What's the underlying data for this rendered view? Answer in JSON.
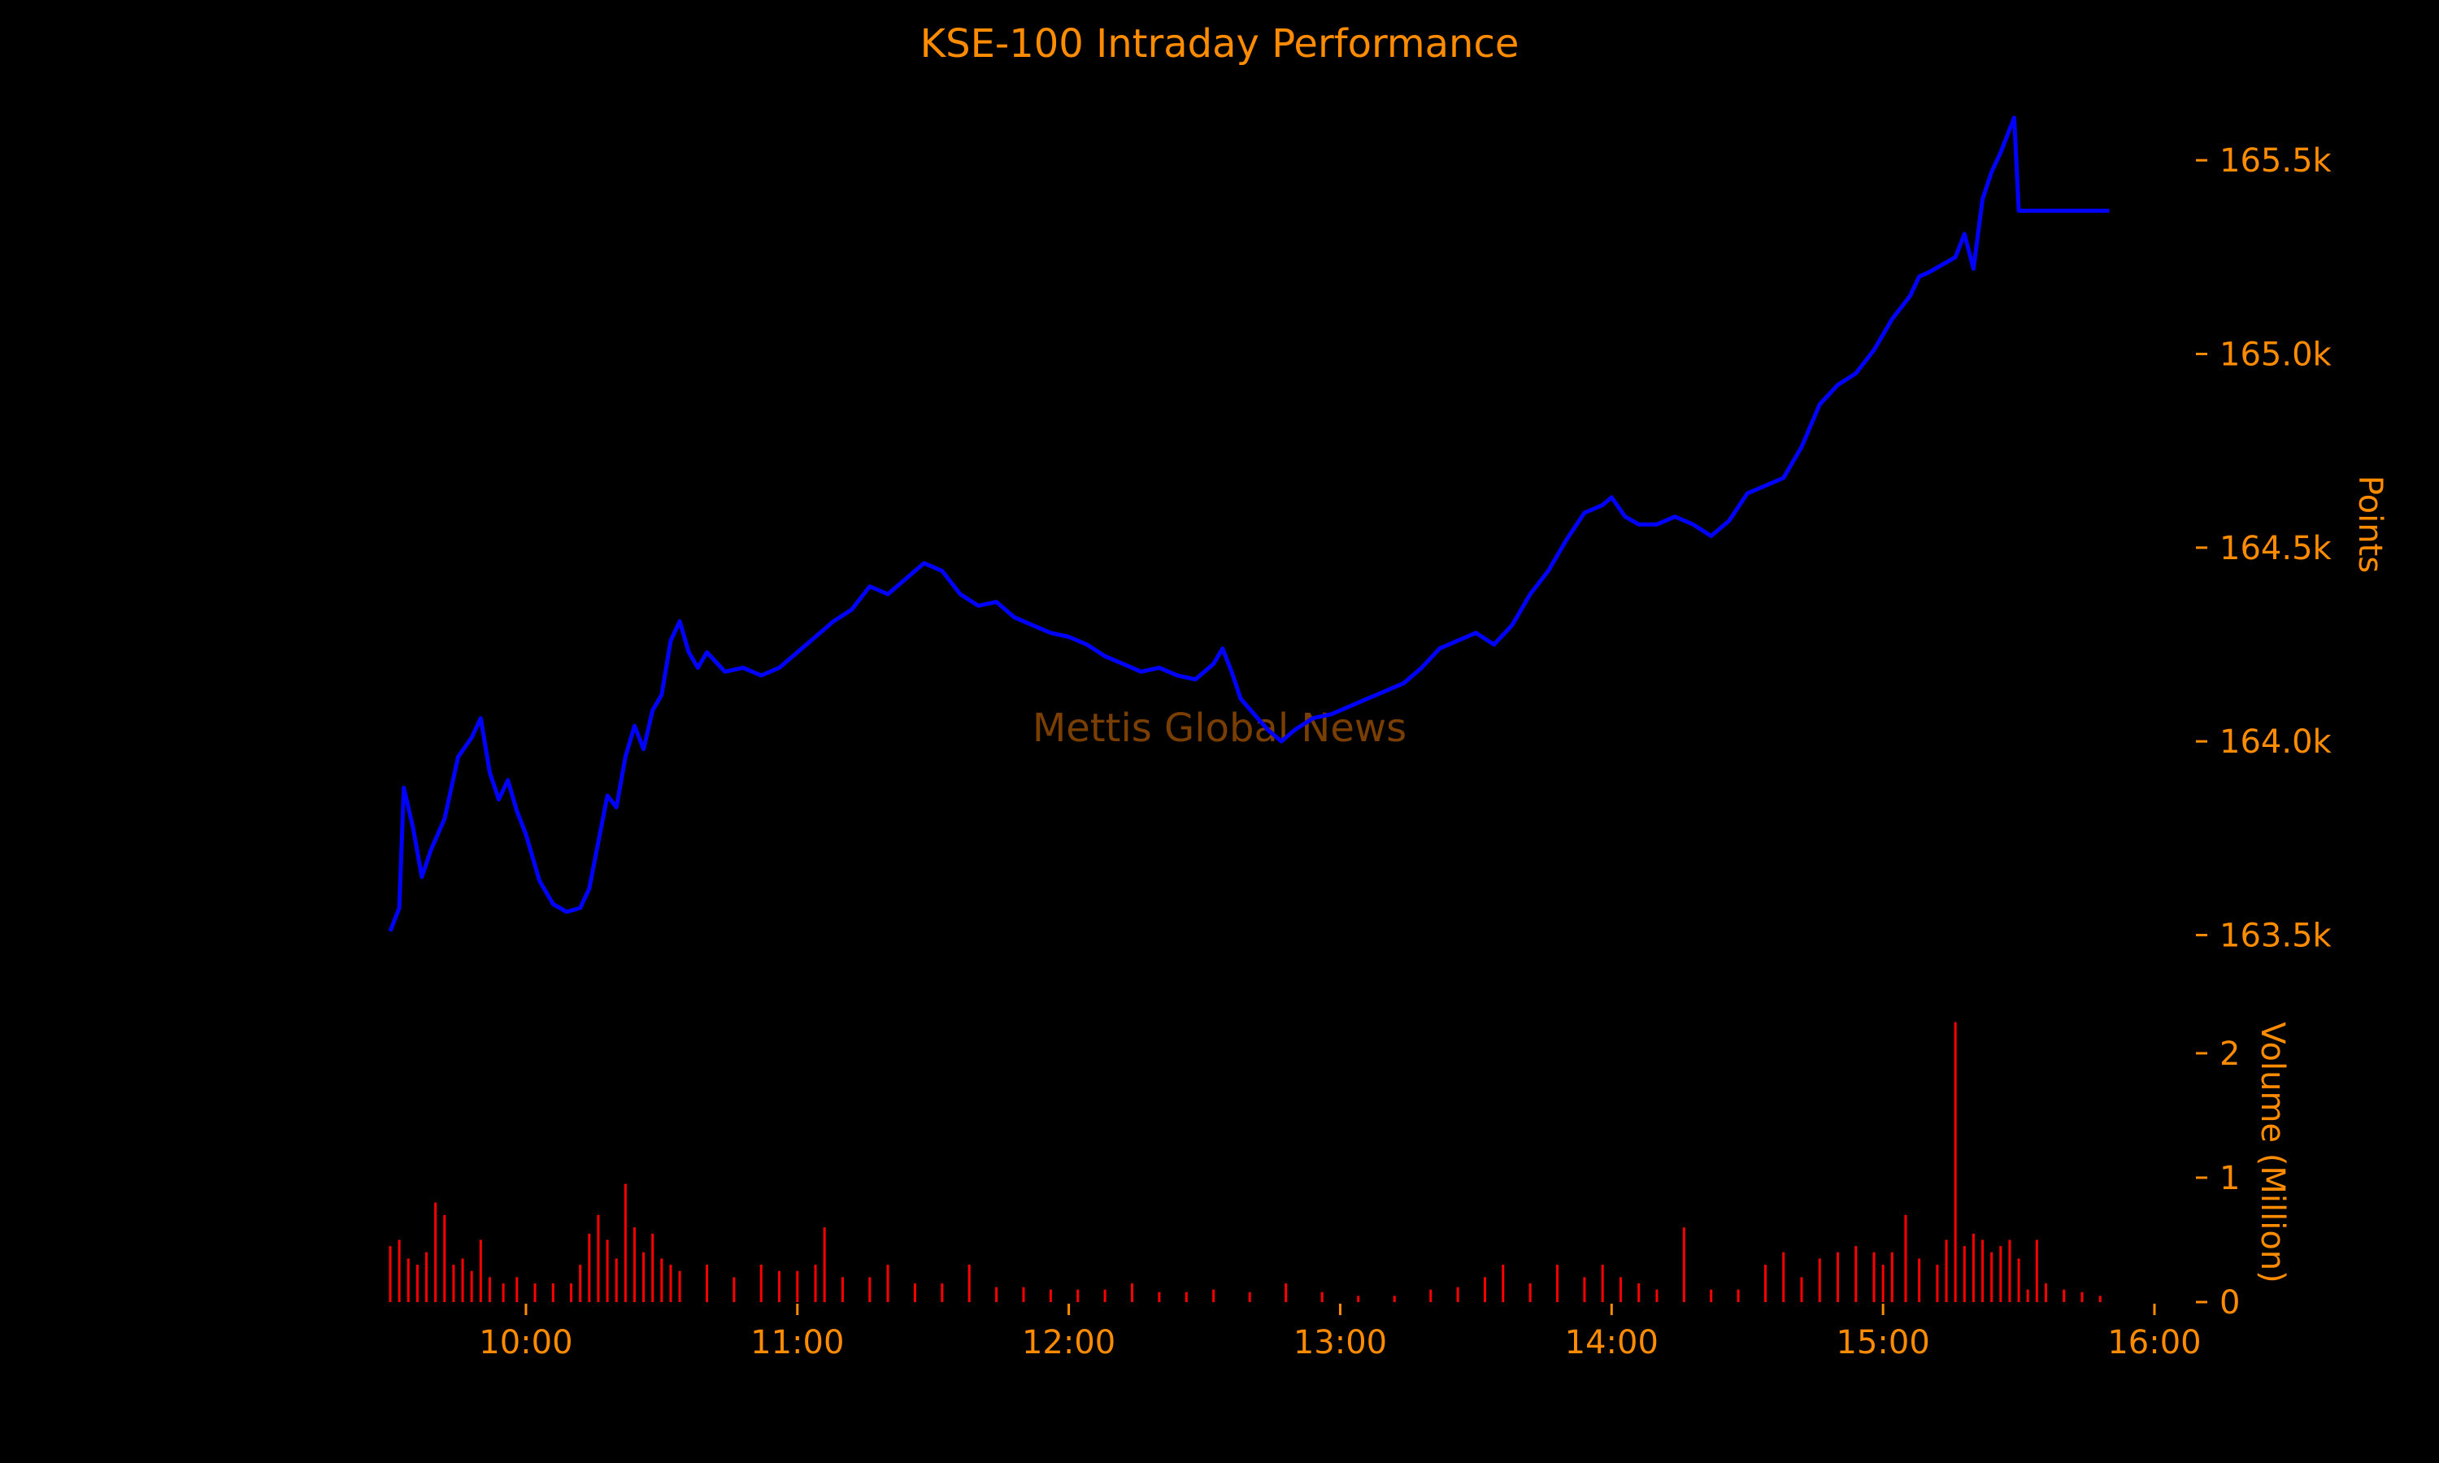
{
  "colors": {
    "background": "#000000",
    "text": "#ff8c00",
    "index_line": "#0000ff",
    "volume_bars": "#ff0000",
    "watermark": "#7a3f00"
  },
  "chart_data": {
    "type": "line",
    "title": "KSE-100 Intraday Performance",
    "watermark": "Mettis Global News",
    "ylabel_points": "Points",
    "ylabel_volume": "Volume (Million)",
    "x_ticks": [
      "10:00",
      "11:00",
      "12:00",
      "13:00",
      "14:00",
      "15:00",
      "16:00"
    ],
    "y_ticks_points": [
      "163.5k",
      "164.0k",
      "164.5k",
      "165.0k",
      "165.5k"
    ],
    "y_ticks_volume": [
      "0",
      "1",
      "2"
    ],
    "xlim": [
      "09:30",
      "16:00"
    ],
    "ylim_points": [
      163480,
      165620
    ],
    "ylim_volume": [
      0,
      2.3
    ],
    "grid": false,
    "legend": "none",
    "series": [
      {
        "type": "line",
        "axis": "points",
        "points": [
          [
            "09:30",
            163510
          ],
          [
            "09:32",
            163570
          ],
          [
            "09:33",
            163880
          ],
          [
            "09:35",
            163780
          ],
          [
            "09:37",
            163650
          ],
          [
            "09:39",
            163720
          ],
          [
            "09:42",
            163800
          ],
          [
            "09:45",
            163960
          ],
          [
            "09:48",
            164010
          ],
          [
            "09:50",
            164060
          ],
          [
            "09:52",
            163920
          ],
          [
            "09:54",
            163850
          ],
          [
            "09:56",
            163900
          ],
          [
            "09:58",
            163820
          ],
          [
            "10:00",
            163760
          ],
          [
            "10:03",
            163640
          ],
          [
            "10:06",
            163580
          ],
          [
            "10:09",
            163560
          ],
          [
            "10:12",
            163570
          ],
          [
            "10:14",
            163620
          ],
          [
            "10:16",
            163740
          ],
          [
            "10:18",
            163860
          ],
          [
            "10:20",
            163830
          ],
          [
            "10:22",
            163960
          ],
          [
            "10:24",
            164040
          ],
          [
            "10:26",
            163980
          ],
          [
            "10:28",
            164080
          ],
          [
            "10:30",
            164120
          ],
          [
            "10:32",
            164260
          ],
          [
            "10:34",
            164310
          ],
          [
            "10:36",
            164230
          ],
          [
            "10:38",
            164190
          ],
          [
            "10:40",
            164230
          ],
          [
            "10:44",
            164180
          ],
          [
            "10:48",
            164190
          ],
          [
            "10:52",
            164170
          ],
          [
            "10:56",
            164190
          ],
          [
            "11:00",
            164230
          ],
          [
            "11:04",
            164270
          ],
          [
            "11:08",
            164310
          ],
          [
            "11:12",
            164340
          ],
          [
            "11:16",
            164400
          ],
          [
            "11:20",
            164380
          ],
          [
            "11:24",
            164420
          ],
          [
            "11:28",
            164460
          ],
          [
            "11:32",
            164440
          ],
          [
            "11:36",
            164380
          ],
          [
            "11:40",
            164350
          ],
          [
            "11:44",
            164360
          ],
          [
            "11:48",
            164320
          ],
          [
            "11:52",
            164300
          ],
          [
            "11:56",
            164280
          ],
          [
            "12:00",
            164270
          ],
          [
            "12:04",
            164250
          ],
          [
            "12:08",
            164220
          ],
          [
            "12:12",
            164200
          ],
          [
            "12:16",
            164180
          ],
          [
            "12:20",
            164190
          ],
          [
            "12:24",
            164170
          ],
          [
            "12:28",
            164160
          ],
          [
            "12:32",
            164200
          ],
          [
            "12:34",
            164240
          ],
          [
            "12:36",
            164180
          ],
          [
            "12:38",
            164110
          ],
          [
            "12:41",
            164070
          ],
          [
            "12:44",
            164030
          ],
          [
            "12:47",
            164000
          ],
          [
            "12:50",
            164030
          ],
          [
            "12:54",
            164060
          ],
          [
            "12:58",
            164070
          ],
          [
            "13:02",
            164090
          ],
          [
            "13:06",
            164110
          ],
          [
            "13:10",
            164130
          ],
          [
            "13:14",
            164150
          ],
          [
            "13:18",
            164190
          ],
          [
            "13:22",
            164240
          ],
          [
            "13:26",
            164260
          ],
          [
            "13:30",
            164280
          ],
          [
            "13:34",
            164250
          ],
          [
            "13:38",
            164300
          ],
          [
            "13:42",
            164380
          ],
          [
            "13:46",
            164440
          ],
          [
            "13:50",
            164520
          ],
          [
            "13:54",
            164590
          ],
          [
            "13:58",
            164610
          ],
          [
            "14:00",
            164630
          ],
          [
            "14:03",
            164580
          ],
          [
            "14:06",
            164560
          ],
          [
            "14:10",
            164560
          ],
          [
            "14:14",
            164580
          ],
          [
            "14:18",
            164560
          ],
          [
            "14:22",
            164530
          ],
          [
            "14:26",
            164570
          ],
          [
            "14:30",
            164640
          ],
          [
            "14:34",
            164660
          ],
          [
            "14:38",
            164680
          ],
          [
            "14:42",
            164760
          ],
          [
            "14:46",
            164870
          ],
          [
            "14:50",
            164920
          ],
          [
            "14:54",
            164950
          ],
          [
            "14:58",
            165010
          ],
          [
            "15:02",
            165090
          ],
          [
            "15:06",
            165150
          ],
          [
            "15:08",
            165200
          ],
          [
            "15:10",
            165210
          ],
          [
            "15:13",
            165230
          ],
          [
            "15:16",
            165250
          ],
          [
            "15:18",
            165310
          ],
          [
            "15:20",
            165220
          ],
          [
            "15:22",
            165400
          ],
          [
            "15:24",
            165470
          ],
          [
            "15:26",
            165520
          ],
          [
            "15:28",
            165580
          ],
          [
            "15:29",
            165610
          ],
          [
            "15:30",
            165370
          ],
          [
            "15:50",
            165370
          ]
        ]
      },
      {
        "type": "bar",
        "axis": "volume",
        "note": "Volume (Million)",
        "points": [
          [
            "09:30",
            0.45
          ],
          [
            "09:32",
            0.5
          ],
          [
            "09:34",
            0.35
          ],
          [
            "09:36",
            0.3
          ],
          [
            "09:38",
            0.4
          ],
          [
            "09:40",
            0.8
          ],
          [
            "09:42",
            0.7
          ],
          [
            "09:44",
            0.3
          ],
          [
            "09:46",
            0.35
          ],
          [
            "09:48",
            0.25
          ],
          [
            "09:50",
            0.5
          ],
          [
            "09:52",
            0.2
          ],
          [
            "09:55",
            0.15
          ],
          [
            "09:58",
            0.2
          ],
          [
            "10:02",
            0.15
          ],
          [
            "10:06",
            0.15
          ],
          [
            "10:10",
            0.15
          ],
          [
            "10:12",
            0.3
          ],
          [
            "10:14",
            0.55
          ],
          [
            "10:16",
            0.7
          ],
          [
            "10:18",
            0.5
          ],
          [
            "10:20",
            0.35
          ],
          [
            "10:22",
            0.95
          ],
          [
            "10:24",
            0.6
          ],
          [
            "10:26",
            0.4
          ],
          [
            "10:28",
            0.55
          ],
          [
            "10:30",
            0.35
          ],
          [
            "10:32",
            0.3
          ],
          [
            "10:34",
            0.25
          ],
          [
            "10:40",
            0.3
          ],
          [
            "10:46",
            0.2
          ],
          [
            "10:52",
            0.3
          ],
          [
            "10:56",
            0.25
          ],
          [
            "11:00",
            0.25
          ],
          [
            "11:04",
            0.3
          ],
          [
            "11:06",
            0.6
          ],
          [
            "11:10",
            0.2
          ],
          [
            "11:16",
            0.2
          ],
          [
            "11:20",
            0.3
          ],
          [
            "11:26",
            0.15
          ],
          [
            "11:32",
            0.15
          ],
          [
            "11:38",
            0.3
          ],
          [
            "11:44",
            0.12
          ],
          [
            "11:50",
            0.12
          ],
          [
            "11:56",
            0.1
          ],
          [
            "12:02",
            0.1
          ],
          [
            "12:08",
            0.1
          ],
          [
            "12:14",
            0.15
          ],
          [
            "12:20",
            0.08
          ],
          [
            "12:26",
            0.08
          ],
          [
            "12:32",
            0.1
          ],
          [
            "12:40",
            0.08
          ],
          [
            "12:48",
            0.15
          ],
          [
            "12:56",
            0.08
          ],
          [
            "13:04",
            0.05
          ],
          [
            "13:12",
            0.05
          ],
          [
            "13:20",
            0.1
          ],
          [
            "13:26",
            0.12
          ],
          [
            "13:32",
            0.2
          ],
          [
            "13:36",
            0.3
          ],
          [
            "13:42",
            0.15
          ],
          [
            "13:48",
            0.3
          ],
          [
            "13:54",
            0.2
          ],
          [
            "13:58",
            0.3
          ],
          [
            "14:02",
            0.2
          ],
          [
            "14:06",
            0.15
          ],
          [
            "14:10",
            0.1
          ],
          [
            "14:16",
            0.6
          ],
          [
            "14:22",
            0.1
          ],
          [
            "14:28",
            0.1
          ],
          [
            "14:34",
            0.3
          ],
          [
            "14:38",
            0.4
          ],
          [
            "14:42",
            0.2
          ],
          [
            "14:46",
            0.35
          ],
          [
            "14:50",
            0.4
          ],
          [
            "14:54",
            0.45
          ],
          [
            "14:58",
            0.4
          ],
          [
            "15:00",
            0.3
          ],
          [
            "15:02",
            0.4
          ],
          [
            "15:05",
            0.7
          ],
          [
            "15:08",
            0.35
          ],
          [
            "15:12",
            0.3
          ],
          [
            "15:14",
            0.5
          ],
          [
            "15:16",
            2.25
          ],
          [
            "15:18",
            0.45
          ],
          [
            "15:20",
            0.55
          ],
          [
            "15:22",
            0.5
          ],
          [
            "15:24",
            0.4
          ],
          [
            "15:26",
            0.45
          ],
          [
            "15:28",
            0.5
          ],
          [
            "15:30",
            0.35
          ],
          [
            "15:32",
            0.1
          ],
          [
            "15:34",
            0.5
          ],
          [
            "15:36",
            0.15
          ],
          [
            "15:40",
            0.1
          ],
          [
            "15:44",
            0.08
          ],
          [
            "15:48",
            0.05
          ]
        ]
      }
    ]
  }
}
